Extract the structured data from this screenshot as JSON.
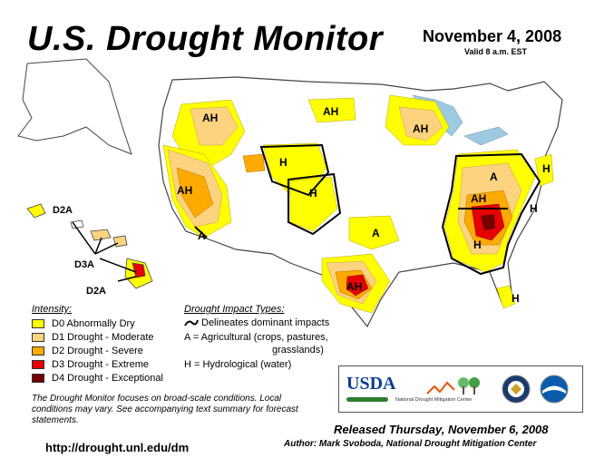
{
  "header": {
    "title": "U.S. Drought Monitor",
    "date": "November 4, 2008",
    "valid": "Valid 8 a.m. EST"
  },
  "map_labels": {
    "ah_northwest": "AH",
    "ah_north_dakota": "AH",
    "ah_wisconsin": "AH",
    "ah_california": "AH",
    "a_arizona": "A",
    "h_wyoming": "H",
    "h_colorado": "H",
    "a_oklahoma": "A",
    "ah_texas": "AH",
    "a_ohio": "A",
    "ah_tennessee": "AH",
    "h_virginia": "H",
    "h_georgia": "H",
    "h_florida": "H",
    "h_northeast": "H",
    "d2a_kauai": "D2A",
    "d3a_maui": "D3A",
    "d2a_big_island": "D2A"
  },
  "legend": {
    "title": "Intensity:",
    "items": [
      {
        "label": "D0 Abnormally Dry",
        "color": "#ffff00"
      },
      {
        "label": "D1 Drought - Moderate",
        "color": "#fcd37f"
      },
      {
        "label": "D2 Drought - Severe",
        "color": "#ffaa00"
      },
      {
        "label": "D3 Drought - Extreme",
        "color": "#e60000"
      },
      {
        "label": "D4 Drought - Exceptional",
        "color": "#730000"
      }
    ]
  },
  "impacts": {
    "title": "Drought Impact Types:",
    "line1": "Delineates dominant impacts",
    "line2": "A = Agricultural (crops, pastures,",
    "line3": "grasslands)",
    "line4": "H = Hydrological (water)"
  },
  "note": "The Drought Monitor focuses on broad-scale conditions. Local conditions may vary. See accompanying text summary for forecast statements.",
  "url": "http://drought.unl.edu/dm",
  "logos": {
    "usda": "USDA",
    "ndmc": "National Drought Mitigation Center"
  },
  "released": "Released Thursday, November 6, 2008",
  "author": "Author: Mark Svoboda, National Drought Mitigation Center",
  "colors": {
    "water": "#9ecae1",
    "land": "#ffffff",
    "state_border": "#999999"
  }
}
